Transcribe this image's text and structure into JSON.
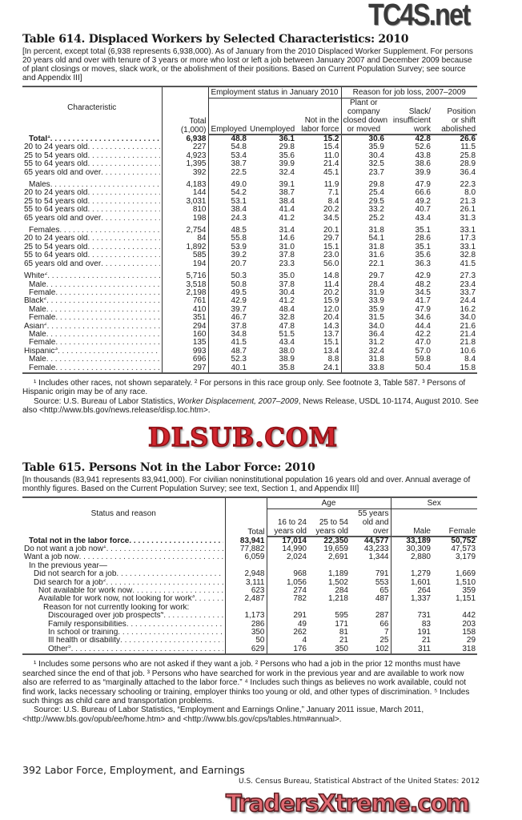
{
  "watermarks": {
    "top": "TC4S.net",
    "middle": "DLSUB.COM",
    "bottom": "TradersXtreme.com"
  },
  "t614": {
    "title": "Table 614. Displaced Workers by Selected Characteristics: 2010",
    "headnote": "[In percent, except total (6,938 represents 6,938,000). As of January from the 2010 Displaced Worker Supplement. For persons 20 years old and over with tenure of 3 years or more who lost or left a job between January 2007 and December 2009 because of plant closings or moves, slack work, or the abolishment of their positions. Based on Current Population Survey; see source and Appendix III]",
    "headers": {
      "characteristic": "Characteristic",
      "total": [
        "Total",
        "(1,000)"
      ],
      "group1": "Employment status in January 2010",
      "group2": "Reason for job loss, 2007–2009",
      "employed": "Employed",
      "unemployed": "Unemployed",
      "not_in_lf": [
        "Not in the",
        "labor force"
      ],
      "plant": [
        "Plant or",
        "company",
        "closed down",
        "or moved"
      ],
      "slack": [
        "Slack/",
        "insufficient",
        "work"
      ],
      "position": [
        "Position",
        "or shift",
        "abolished"
      ]
    },
    "rows": [
      {
        "label": "Total",
        "sup": "1",
        "level": 1,
        "bold": true,
        "values": [
          "6,938",
          "48.8",
          "36.1",
          "15.2",
          "30.6",
          "42.8",
          "26.6"
        ]
      },
      {
        "label": "20 to 24 years old",
        "level": 0,
        "values": [
          "227",
          "54.8",
          "29.8",
          "15.4",
          "35.9",
          "52.6",
          "11.5"
        ]
      },
      {
        "label": "25 to 54 years old",
        "level": 0,
        "values": [
          "4,923",
          "53.4",
          "35.6",
          "11.0",
          "30.4",
          "43.8",
          "25.8"
        ]
      },
      {
        "label": "55 to 64 years old",
        "level": 0,
        "values": [
          "1,395",
          "38.7",
          "39.9",
          "21.4",
          "32.5",
          "38.6",
          "28.9"
        ]
      },
      {
        "label": "65 years old and over",
        "level": 0,
        "values": [
          "392",
          "22.5",
          "32.4",
          "45.1",
          "23.7",
          "39.9",
          "36.4"
        ]
      },
      {
        "label": "Males",
        "level": 1,
        "gap": true,
        "values": [
          "4,183",
          "49.0",
          "39.1",
          "11.9",
          "29.8",
          "47.9",
          "22.3"
        ]
      },
      {
        "label": "20 to 24 years old",
        "level": 0,
        "values": [
          "144",
          "54.2",
          "38.7",
          "7.1",
          "25.4",
          "66.6",
          "8.0"
        ]
      },
      {
        "label": "25 to 54 years old",
        "level": 0,
        "values": [
          "3,031",
          "53.1",
          "38.4",
          "8.4",
          "29.5",
          "49.2",
          "21.3"
        ]
      },
      {
        "label": "55 to 64 years old",
        "level": 0,
        "values": [
          "810",
          "38.4",
          "41.4",
          "20.2",
          "33.2",
          "40.7",
          "26.1"
        ]
      },
      {
        "label": "65 years old and over",
        "level": 0,
        "values": [
          "198",
          "24.3",
          "41.2",
          "34.5",
          "25.2",
          "43.4",
          "31.3"
        ]
      },
      {
        "label": "Females",
        "level": 1,
        "gap": true,
        "values": [
          "2,754",
          "48.5",
          "31.4",
          "20.1",
          "31.8",
          "35.1",
          "33.1"
        ]
      },
      {
        "label": "20 to 24 years old",
        "level": 0,
        "values": [
          "84",
          "55.8",
          "14.6",
          "29.7",
          "54.1",
          "28.6",
          "17.3"
        ]
      },
      {
        "label": "25 to 54 years old",
        "level": 0,
        "values": [
          "1,892",
          "53.9",
          "31.0",
          "15.1",
          "31.8",
          "35.1",
          "33.1"
        ]
      },
      {
        "label": "55 to 64 years old",
        "level": 0,
        "values": [
          "585",
          "39.2",
          "37.8",
          "23.0",
          "31.6",
          "35.6",
          "32.8"
        ]
      },
      {
        "label": "65 years old and over",
        "level": 0,
        "values": [
          "194",
          "20.7",
          "23.3",
          "56.0",
          "22.1",
          "36.3",
          "41.5"
        ]
      },
      {
        "label": "White",
        "sup": "2",
        "level": 0,
        "gap": true,
        "values": [
          "5,716",
          "50.3",
          "35.0",
          "14.8",
          "29.7",
          "42.9",
          "27.3"
        ]
      },
      {
        "label": "Male",
        "level": 1,
        "values": [
          "3,518",
          "50.8",
          "37.8",
          "11.4",
          "28.4",
          "48.2",
          "23.4"
        ]
      },
      {
        "label": "Female",
        "level": 1,
        "values": [
          "2,198",
          "49.5",
          "30.4",
          "20.2",
          "31.9",
          "34.5",
          "33.7"
        ]
      },
      {
        "label": "Black",
        "sup": "2",
        "level": 0,
        "values": [
          "761",
          "42.9",
          "41.2",
          "15.9",
          "33.9",
          "41.7",
          "24.4"
        ]
      },
      {
        "label": "Male",
        "level": 1,
        "values": [
          "410",
          "39.7",
          "48.4",
          "12.0",
          "35.9",
          "47.9",
          "16.2"
        ]
      },
      {
        "label": "Female",
        "level": 1,
        "values": [
          "351",
          "46.7",
          "32.8",
          "20.4",
          "31.5",
          "34.6",
          "34.0"
        ]
      },
      {
        "label": "Asian",
        "sup": "2",
        "level": 0,
        "values": [
          "294",
          "37.8",
          "47.8",
          "14.3",
          "34.0",
          "44.4",
          "21.6"
        ]
      },
      {
        "label": "Male",
        "level": 1,
        "values": [
          "160",
          "34.8",
          "51.5",
          "13.7",
          "36.4",
          "42.2",
          "21.4"
        ]
      },
      {
        "label": "Female",
        "level": 1,
        "values": [
          "135",
          "41.5",
          "43.4",
          "15.1",
          "31.2",
          "47.0",
          "21.8"
        ]
      },
      {
        "label": "Hispanic",
        "sup": "3",
        "level": 0,
        "values": [
          "993",
          "48.7",
          "38.0",
          "13.4",
          "32.4",
          "57.0",
          "10.6"
        ]
      },
      {
        "label": "Male",
        "level": 1,
        "values": [
          "696",
          "52.3",
          "38.9",
          "8.8",
          "31.8",
          "59.8",
          "8.4"
        ]
      },
      {
        "label": "Female",
        "level": 1,
        "values": [
          "297",
          "40.1",
          "35.8",
          "24.1",
          "33.8",
          "50.4",
          "15.8"
        ]
      }
    ],
    "footnotes": "¹ Includes other races, not shown separately. ² For persons in this race group only. See footnote 3, Table 587. ³ Persons of Hispanic origin may be of any race.",
    "source_prefix": "Source: U.S. Bureau of Labor Statistics, ",
    "source_title": "Worker Displacement, 2007–2009",
    "source_suffix": ", News Release, USDL 10-1174, August 2010. See also <http://www.bls.gov/news.release/disp.toc.htm>."
  },
  "t615": {
    "title": "Table 615. Persons Not in the Labor Force: 2010",
    "headnote": "[In thousands (83,941 represents 83,941,000). For civilian noninstitutional population 16 years old and over. Annual average of monthly figures. Based on the Current Population Survey; see text, Section 1, and Appendix III]",
    "headers": {
      "status": "Status and reason",
      "total": "Total",
      "age": "Age",
      "sex": "Sex",
      "age1": [
        "16 to 24",
        "years old"
      ],
      "age2": [
        "25 to 54",
        "years old"
      ],
      "age3": [
        "55 years",
        "old and",
        "over"
      ],
      "male": "Male",
      "female": "Female"
    },
    "rows": [
      {
        "label": "Total not in the labor force",
        "level": 1,
        "bold": true,
        "values": [
          "83,941",
          "17,014",
          "22,350",
          "44,577",
          "33,189",
          "50,752"
        ]
      },
      {
        "label": "Do not want a job now",
        "sup": "1",
        "level": 0,
        "values": [
          "77,882",
          "14,990",
          "19,659",
          "43,233",
          "30,309",
          "47,573"
        ]
      },
      {
        "label": "Want a job now",
        "level": 0,
        "values": [
          "6,059",
          "2,024",
          "2,691",
          "1,344",
          "2,880",
          "3,179"
        ]
      },
      {
        "label": "In the previous year—",
        "level": 1,
        "nodots": true,
        "values": [
          "",
          "",
          "",
          "",
          "",
          ""
        ]
      },
      {
        "label": "Did not search for a job",
        "level": 2,
        "values": [
          "2,948",
          "968",
          "1,189",
          "791",
          "1,279",
          "1,669"
        ]
      },
      {
        "label": "Did search for a job",
        "sup": "2",
        "level": 2,
        "values": [
          "3,111",
          "1,056",
          "1,502",
          "553",
          "1,601",
          "1,510"
        ]
      },
      {
        "label": "Not available for work now",
        "level": 3,
        "values": [
          "623",
          "274",
          "284",
          "65",
          "264",
          "359"
        ]
      },
      {
        "label": "Available for work now, not looking for work",
        "sup": "3",
        "level": 3,
        "values": [
          "2,487",
          "782",
          "1,218",
          "487",
          "1,337",
          "1,151"
        ]
      },
      {
        "label": "Reason for not currently looking for work:",
        "level": 4,
        "nodots": true,
        "values": [
          "",
          "",
          "",
          "",
          "",
          ""
        ]
      },
      {
        "label": "Discouraged over job prospects",
        "sup": "4",
        "level": 5,
        "values": [
          "1,173",
          "291",
          "595",
          "287",
          "731",
          "442"
        ]
      },
      {
        "label": "Family responsibilities",
        "level": 5,
        "values": [
          "286",
          "49",
          "171",
          "66",
          "83",
          "203"
        ]
      },
      {
        "label": "In school or training",
        "level": 5,
        "values": [
          "350",
          "262",
          "81",
          "7",
          "191",
          "158"
        ]
      },
      {
        "label": "Ill health or disability",
        "level": 5,
        "values": [
          "50",
          "4",
          "21",
          "25",
          "21",
          "29"
        ]
      },
      {
        "label": "Other",
        "sup": "5",
        "level": 5,
        "values": [
          "629",
          "176",
          "350",
          "102",
          "311",
          "318"
        ]
      }
    ],
    "footnotes": "¹ Includes some persons who are not asked if they want a job. ² Persons who had a job in the prior 12 months must have searched since the end of that job. ³ Persons who have searched for work in the previous year and are available to work now also are referred to as “marginally attached to the labor force.” ⁴ Includes such things as believes no work available, could not find work, lacks necessary schooling or training, employer thinks too young or old, and other types of discrimination. ⁵ Includes such things as child care and transportation problems.",
    "source": "Source: U.S. Bureau of Labor Statistics, “Employment and Earnings Online,” January 2011 issue, March 2011, <http://www.bls.gov/opub/ee/home.htm> and <http://www.bls.gov/cps/tables.htm#annual>."
  },
  "footer": {
    "page": "392  Labor Force, Employment, and Earnings",
    "publication": "U.S. Census Bureau, Statistical Abstract of the United States: 2012"
  }
}
